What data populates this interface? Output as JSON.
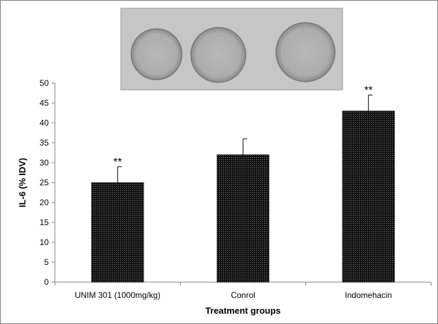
{
  "chart_data": {
    "type": "bar",
    "categories": [
      "UNIM 301 (1000mg/kg)",
      "Conrol",
      "Indomehacin"
    ],
    "values": [
      25,
      32,
      43
    ],
    "error_bars": [
      4,
      4,
      4
    ],
    "annotations": [
      "**",
      "",
      "**"
    ],
    "xlabel": "Treatment groups",
    "ylabel": "IL-6 (% IDV)",
    "ylim": [
      0,
      50
    ],
    "yticks": [
      0,
      5,
      10,
      15,
      20,
      25,
      30,
      35,
      40,
      45,
      50
    ],
    "grid": false,
    "legend": "none",
    "bar_color": "#111111",
    "inset_image": "western blot dot image with three circular spots"
  }
}
